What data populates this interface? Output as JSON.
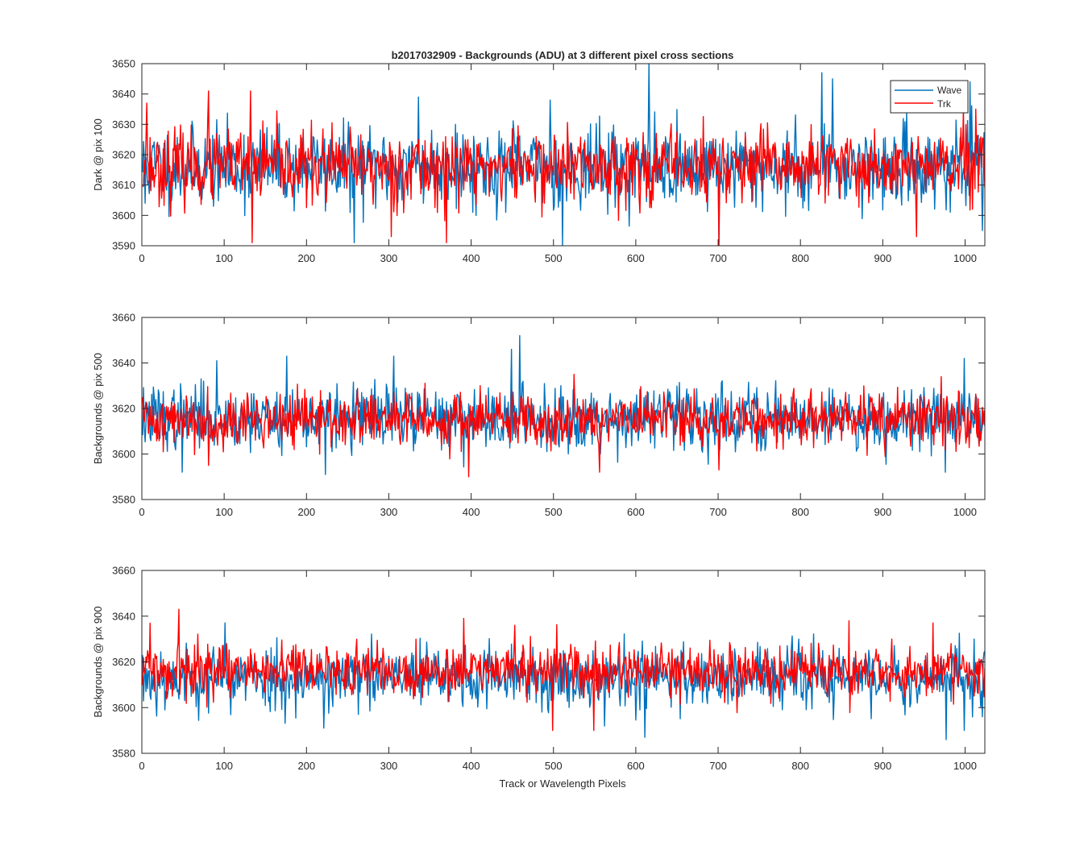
{
  "figure": {
    "title": "b2017032909 - Backgrounds (ADU) at 3 different pixel cross sections",
    "xlabel": "Track or Wavelength Pixels"
  },
  "legend": {
    "placement": "top-right of first panel",
    "entries": [
      {
        "label": "Wave",
        "color": "#0072BD"
      },
      {
        "label": "Trk",
        "color": "#FF0000"
      }
    ]
  },
  "chart_data": [
    {
      "type": "line",
      "title": "b2017032909 - Backgrounds (ADU) at 3 different pixel cross sections",
      "xlabel": "",
      "ylabel": "Dark @ pix 100",
      "xlim": [
        0,
        1024
      ],
      "ylim": [
        3590,
        3650
      ],
      "xticks": [
        0,
        100,
        200,
        300,
        400,
        500,
        600,
        700,
        800,
        900,
        1000
      ],
      "yticks": [
        3590,
        3600,
        3610,
        3620,
        3630,
        3640,
        3650
      ],
      "grid": false,
      "n_points": 1024,
      "series": [
        {
          "name": "Wave",
          "color": "#0072BD",
          "mean": 3616,
          "std": 6.5,
          "seed": 11,
          "spikes": [
            [
              615,
              3650
            ],
            [
              257,
              3591
            ],
            [
              335,
              3639
            ],
            [
              380,
              3630
            ],
            [
              495,
              3638
            ],
            [
              838,
              3645
            ],
            [
              825,
              3647
            ],
            [
              1005,
              3644
            ],
            [
              700,
              3591
            ],
            [
              1020,
              3595
            ],
            [
              510,
              3590
            ],
            [
              3,
              3604
            ]
          ]
        },
        {
          "name": "Trk",
          "color": "#FF0000",
          "mean": 3616,
          "std": 6.0,
          "seed": 23,
          "spikes": [
            [
              133,
              3591
            ],
            [
              80,
              3641
            ],
            [
              131,
              3641
            ],
            [
              369,
              3591
            ],
            [
              700,
              3590
            ],
            [
              5,
              3637
            ],
            [
              940,
              3593
            ],
            [
              1012,
              3635
            ],
            [
              302,
              3593
            ]
          ]
        }
      ]
    },
    {
      "type": "line",
      "title": "",
      "xlabel": "",
      "ylabel": "Backgrounds @ pix 500",
      "xlim": [
        0,
        1024
      ],
      "ylim": [
        3580,
        3660
      ],
      "xticks": [
        0,
        100,
        200,
        300,
        400,
        500,
        600,
        700,
        800,
        900,
        1000
      ],
      "yticks": [
        3580,
        3600,
        3620,
        3640,
        3660
      ],
      "grid": false,
      "n_points": 1024,
      "series": [
        {
          "name": "Wave",
          "color": "#0072BD",
          "mean": 3616,
          "std": 7.0,
          "seed": 37,
          "spikes": [
            [
              458,
              3652
            ],
            [
              448,
              3646
            ],
            [
              175,
              3643
            ],
            [
              305,
              3643
            ],
            [
              998,
              3642
            ],
            [
              90,
              3641
            ],
            [
              48,
              3592
            ],
            [
              222,
              3591
            ],
            [
              975,
              3592
            ]
          ]
        },
        {
          "name": "Trk",
          "color": "#FF0000",
          "mean": 3615,
          "std": 6.0,
          "seed": 41,
          "spikes": [
            [
              396,
              3590
            ],
            [
              80,
              3595
            ],
            [
              555,
              3592
            ],
            [
              970,
              3634
            ],
            [
              524,
              3635
            ],
            [
              700,
              3593
            ]
          ]
        }
      ]
    },
    {
      "type": "line",
      "title": "",
      "xlabel": "Track or Wavelength Pixels",
      "ylabel": "Backgrounds @ pix 900",
      "xlim": [
        0,
        1024
      ],
      "ylim": [
        3580,
        3660
      ],
      "xticks": [
        0,
        100,
        200,
        300,
        400,
        500,
        600,
        700,
        800,
        900,
        1000
      ],
      "yticks": [
        3580,
        3600,
        3620,
        3640,
        3660
      ],
      "grid": false,
      "n_points": 1024,
      "series": [
        {
          "name": "Wave",
          "color": "#0072BD",
          "mean": 3613,
          "std": 7.0,
          "seed": 53,
          "spikes": [
            [
              976,
              3586
            ],
            [
              610,
              3587
            ],
            [
              220,
              3591
            ],
            [
              998,
              3590
            ],
            [
              1020,
              3596
            ],
            [
              100,
              3637
            ]
          ]
        },
        {
          "name": "Trk",
          "color": "#FF0000",
          "mean": 3616,
          "std": 5.5,
          "seed": 59,
          "spikes": [
            [
              44,
              3643
            ],
            [
              390,
              3639
            ],
            [
              858,
              3638
            ],
            [
              548,
              3590
            ],
            [
              982,
              3628
            ],
            [
              452,
              3636
            ],
            [
              960,
              3637
            ],
            [
              498,
              3590
            ]
          ]
        }
      ]
    }
  ]
}
